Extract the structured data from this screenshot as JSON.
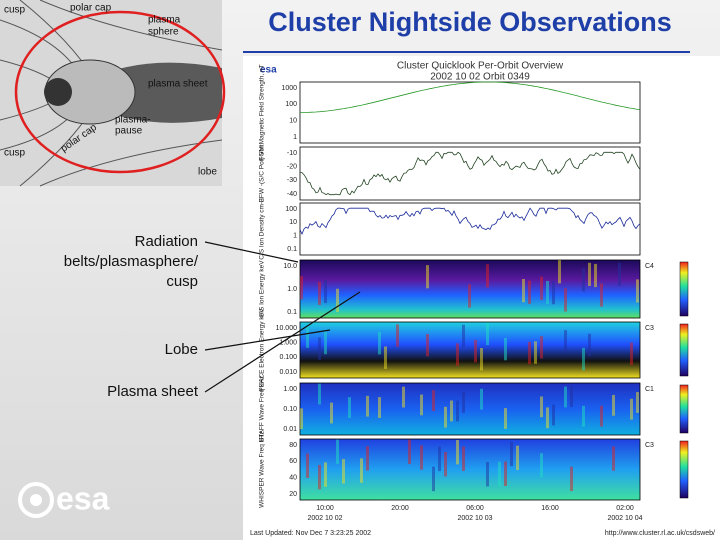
{
  "title": "Cluster Nightside Observations",
  "diagram": {
    "labels": [
      "cusp",
      "polar cap",
      "plasma",
      "sphere",
      "plasma sheet",
      "plasma-",
      "pause",
      "polar cap",
      "cusp",
      "lobe"
    ]
  },
  "annotations": [
    [
      "Radiation",
      "belts/plasmasphere/",
      "cusp"
    ],
    [
      "Lobe"
    ],
    [
      "Plasma sheet"
    ]
  ],
  "logo": "esa",
  "plot": {
    "logo": "esa",
    "title": "Cluster Quicklook Per-Orbit Overview",
    "subtitle": "2002 10 02 Orbit 0349",
    "panels": [
      {
        "label": "FGM Magnetic Field Strength, nT",
        "ticks": [
          "1000",
          "100",
          "10",
          "1"
        ],
        "kind": "line",
        "color": "#2a9a2a"
      },
      {
        "label": "EFW -(S/C Pot) Volt",
        "ticks": [
          "-10",
          "-20",
          "-30",
          "-40"
        ],
        "kind": "line",
        "color": "#224422"
      },
      {
        "label": "CIS Ion Density cm-3",
        "ticks": [
          "100",
          "10",
          "1",
          "0.1"
        ],
        "kind": "line",
        "color": "#1a2a9a"
      },
      {
        "label": "CIS Ion Energy keV",
        "ticks": [
          "10.0",
          "1.0",
          "0.1"
        ],
        "kind": "spec1",
        "sc": "C4"
      },
      {
        "label": "PEACE Electron Energy keV",
        "ticks": [
          "10.000",
          "1.000",
          "0.100",
          "0.010"
        ],
        "kind": "spec2",
        "sc": "C3"
      },
      {
        "label": "STAFF Wave Freq kHz",
        "ticks": [
          "1.00",
          "0.10",
          "0.01"
        ],
        "kind": "spec3",
        "sc": "C1"
      },
      {
        "label": "WHISPER Wave Freq kHz",
        "ticks": [
          "80",
          "60",
          "40",
          "20"
        ],
        "kind": "spec4",
        "sc": "C3"
      }
    ],
    "times": [
      "10:00",
      "20:00",
      "06:00",
      "16:00",
      "02:00"
    ],
    "dates": [
      "2002 10 02",
      "2002 10 03",
      "2002 10 04"
    ],
    "footer_left": "Last Updated: Nov Dec 7 3:23:25 2002",
    "footer_right": "http://www.cluster.rl.ac.uk/csdsweb/"
  }
}
